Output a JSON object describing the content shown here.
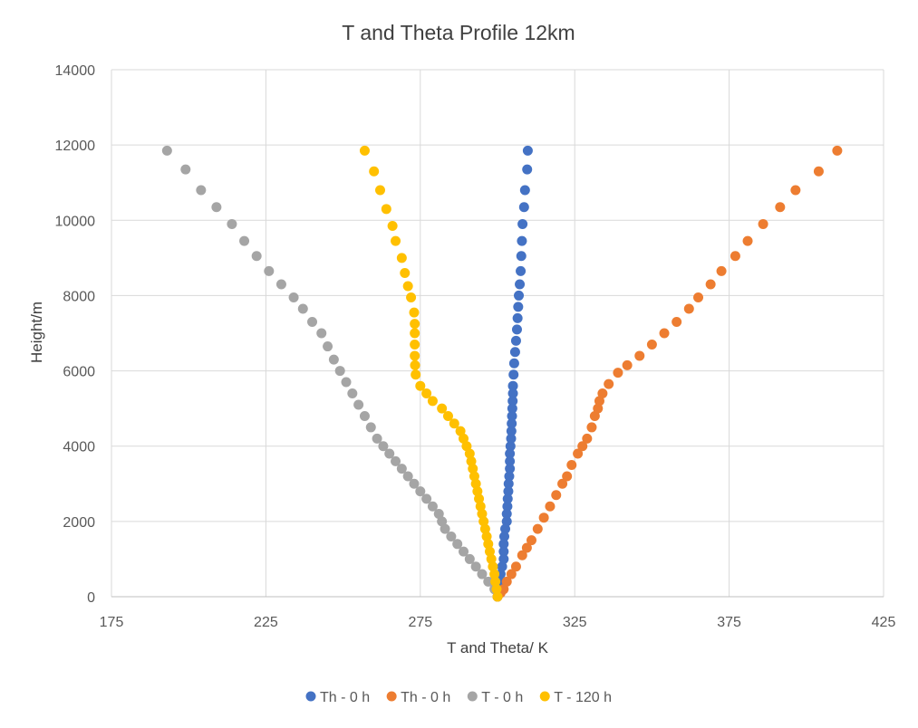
{
  "chart_data": {
    "type": "scatter",
    "title": "T and Theta Profile 12km",
    "xlabel": "T and Theta/ K",
    "ylabel": "Height/m",
    "xlim": [
      175,
      425
    ],
    "ylim": [
      0,
      14000
    ],
    "xticks": [
      175,
      225,
      275,
      325,
      375,
      425
    ],
    "yticks": [
      0,
      2000,
      4000,
      6000,
      8000,
      10000,
      12000,
      14000
    ],
    "grid": true,
    "legend_position": "bottom",
    "series": [
      {
        "name": "Th - 0 h",
        "color": "#4472C4",
        "points": [
          [
            300,
            0
          ],
          [
            300,
            200
          ],
          [
            300.5,
            400
          ],
          [
            301,
            600
          ],
          [
            301.5,
            800
          ],
          [
            302,
            1000
          ],
          [
            302,
            1200
          ],
          [
            302,
            1400
          ],
          [
            302.2,
            1600
          ],
          [
            302.5,
            1800
          ],
          [
            303,
            2000
          ],
          [
            303,
            2200
          ],
          [
            303.2,
            2400
          ],
          [
            303.3,
            2600
          ],
          [
            303.5,
            2800
          ],
          [
            303.6,
            3000
          ],
          [
            303.8,
            3200
          ],
          [
            304,
            3400
          ],
          [
            304,
            3600
          ],
          [
            304,
            3800
          ],
          [
            304.2,
            4000
          ],
          [
            304.4,
            4200
          ],
          [
            304.5,
            4400
          ],
          [
            304.6,
            4600
          ],
          [
            304.7,
            4800
          ],
          [
            304.8,
            5000
          ],
          [
            304.9,
            5200
          ],
          [
            305,
            5400
          ],
          [
            305,
            5600
          ],
          [
            305.2,
            5900
          ],
          [
            305.4,
            6200
          ],
          [
            305.7,
            6500
          ],
          [
            306,
            6800
          ],
          [
            306.3,
            7100
          ],
          [
            306.5,
            7400
          ],
          [
            306.7,
            7700
          ],
          [
            306.9,
            8000
          ],
          [
            307.2,
            8300
          ],
          [
            307.5,
            8650
          ],
          [
            307.7,
            9050
          ],
          [
            307.9,
            9450
          ],
          [
            308.1,
            9900
          ],
          [
            308.6,
            10350
          ],
          [
            308.9,
            10800
          ],
          [
            309.6,
            11350
          ],
          [
            309.8,
            11850
          ]
        ]
      },
      {
        "name": "Th - 0 h",
        "color": "#ED7D31",
        "points": [
          [
            300,
            0
          ],
          [
            301,
            100
          ],
          [
            302,
            200
          ],
          [
            303,
            400
          ],
          [
            304.5,
            600
          ],
          [
            306,
            800
          ],
          [
            308,
            1100
          ],
          [
            309.5,
            1300
          ],
          [
            311,
            1500
          ],
          [
            313,
            1800
          ],
          [
            315,
            2100
          ],
          [
            317,
            2400
          ],
          [
            319,
            2700
          ],
          [
            321,
            3000
          ],
          [
            322.5,
            3200
          ],
          [
            324,
            3500
          ],
          [
            326,
            3800
          ],
          [
            327.5,
            4000
          ],
          [
            329,
            4200
          ],
          [
            330.5,
            4500
          ],
          [
            331.5,
            4800
          ],
          [
            332.5,
            5000
          ],
          [
            333,
            5200
          ],
          [
            334,
            5400
          ],
          [
            336,
            5650
          ],
          [
            339,
            5950
          ],
          [
            342,
            6150
          ],
          [
            346,
            6400
          ],
          [
            350,
            6700
          ],
          [
            354,
            7000
          ],
          [
            358,
            7300
          ],
          [
            362,
            7650
          ],
          [
            365,
            7950
          ],
          [
            369,
            8300
          ],
          [
            372.5,
            8650
          ],
          [
            377,
            9050
          ],
          [
            381,
            9450
          ],
          [
            386,
            9900
          ],
          [
            391.5,
            10350
          ],
          [
            396.5,
            10800
          ],
          [
            404,
            11300
          ],
          [
            410,
            11850
          ]
        ]
      },
      {
        "name": "T - 0 h",
        "color": "#A5A5A5",
        "points": [
          [
            300,
            0
          ],
          [
            299,
            200
          ],
          [
            297,
            400
          ],
          [
            295,
            600
          ],
          [
            293,
            800
          ],
          [
            291,
            1000
          ],
          [
            289,
            1200
          ],
          [
            287,
            1400
          ],
          [
            285,
            1600
          ],
          [
            283,
            1800
          ],
          [
            282,
            2000
          ],
          [
            281,
            2200
          ],
          [
            279,
            2400
          ],
          [
            277,
            2600
          ],
          [
            275,
            2800
          ],
          [
            273,
            3000
          ],
          [
            271,
            3200
          ],
          [
            269,
            3400
          ],
          [
            267,
            3600
          ],
          [
            265,
            3800
          ],
          [
            263,
            4000
          ],
          [
            261,
            4200
          ],
          [
            259,
            4500
          ],
          [
            257,
            4800
          ],
          [
            255,
            5100
          ],
          [
            253,
            5400
          ],
          [
            251,
            5700
          ],
          [
            249,
            6000
          ],
          [
            247,
            6300
          ],
          [
            245,
            6650
          ],
          [
            243,
            7000
          ],
          [
            240,
            7300
          ],
          [
            237,
            7650
          ],
          [
            234,
            7950
          ],
          [
            230,
            8300
          ],
          [
            226,
            8650
          ],
          [
            222,
            9050
          ],
          [
            218,
            9450
          ],
          [
            214,
            9900
          ],
          [
            209,
            10350
          ],
          [
            204,
            10800
          ],
          [
            199,
            11350
          ],
          [
            193,
            11850
          ]
        ]
      },
      {
        "name": "T - 120 h",
        "color": "#FFC000",
        "points": [
          [
            300,
            0
          ],
          [
            299.7,
            200
          ],
          [
            299.3,
            400
          ],
          [
            299,
            600
          ],
          [
            298.5,
            800
          ],
          [
            298,
            1000
          ],
          [
            297.5,
            1200
          ],
          [
            297,
            1400
          ],
          [
            296.5,
            1600
          ],
          [
            296,
            1800
          ],
          [
            295.5,
            2000
          ],
          [
            295,
            2200
          ],
          [
            294.5,
            2400
          ],
          [
            294,
            2600
          ],
          [
            293.5,
            2800
          ],
          [
            293,
            3000
          ],
          [
            292.5,
            3200
          ],
          [
            292,
            3400
          ],
          [
            291.5,
            3600
          ],
          [
            291,
            3800
          ],
          [
            290,
            4000
          ],
          [
            289,
            4200
          ],
          [
            288,
            4400
          ],
          [
            286,
            4600
          ],
          [
            284,
            4800
          ],
          [
            282,
            5000
          ],
          [
            279,
            5200
          ],
          [
            277,
            5400
          ],
          [
            275,
            5600
          ],
          [
            273.5,
            5900
          ],
          [
            273.3,
            6150
          ],
          [
            273.2,
            6400
          ],
          [
            273.2,
            6700
          ],
          [
            273.2,
            7000
          ],
          [
            273.2,
            7250
          ],
          [
            273,
            7550
          ],
          [
            272,
            7950
          ],
          [
            271,
            8250
          ],
          [
            270,
            8600
          ],
          [
            269,
            9000
          ],
          [
            267,
            9450
          ],
          [
            266,
            9850
          ],
          [
            264,
            10300
          ],
          [
            262,
            10800
          ],
          [
            260,
            11300
          ],
          [
            257,
            11850
          ]
        ]
      }
    ]
  }
}
